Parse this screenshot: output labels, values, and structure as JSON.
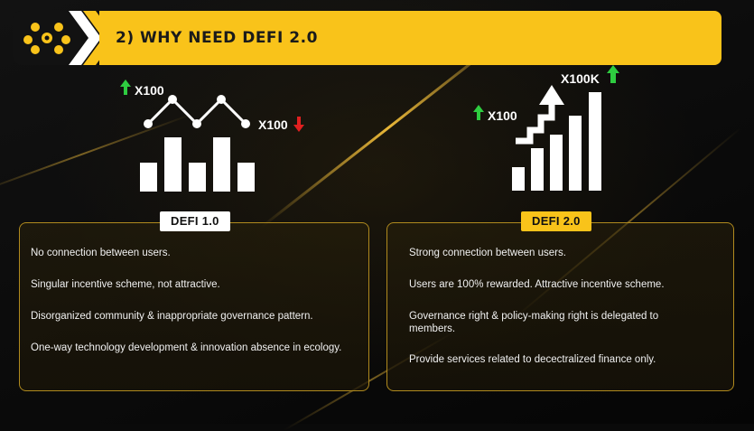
{
  "header": {
    "logo_icon": "honeycomb-dots-logo",
    "title": "2) WHY NEED DEFI 2.0"
  },
  "illustrations": {
    "defi1": {
      "up_label": "X100",
      "down_label": "X100",
      "icon": "bar-chart-zigzag-icon"
    },
    "defi2": {
      "up_label": "X100",
      "top_label": "X100K",
      "icon": "rising-bar-chart-icon"
    }
  },
  "defi1": {
    "tag": "DEFI 1.0",
    "items": [
      "No connection between users.",
      "Singular incentive scheme, not attractive.",
      "Disorganized community & inappropriate governance pattern.",
      "One-way technology development & innovation absence in ecology."
    ]
  },
  "defi2": {
    "tag": "DEFI 2.0",
    "items": [
      "Strong connection between users.",
      "Users are 100% rewarded. Attractive incentive scheme.",
      "Governance right & policy-making right is delegated to members.",
      "Provide services related to decectralized finance only."
    ]
  },
  "colors": {
    "accent": "#f9c31a",
    "up": "#2ecc40",
    "down": "#e02020",
    "border": "#b08a1e"
  }
}
